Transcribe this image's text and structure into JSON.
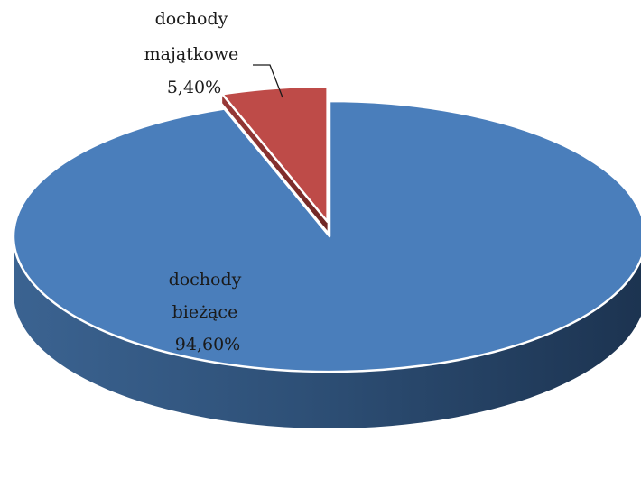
{
  "chart_data": {
    "type": "pie",
    "style": "3d",
    "title": "",
    "slices": [
      {
        "label_lines": [
          "dochody",
          "bieżące"
        ],
        "value": 94.6,
        "value_label": "94,60%",
        "color": "#4A7EBB",
        "exploded": false
      },
      {
        "label_lines": [
          "dochody",
          "majątkowe"
        ],
        "value": 5.4,
        "value_label": "5,40%",
        "color": "#BE4B48",
        "exploded": true
      }
    ],
    "legend": "none"
  }
}
